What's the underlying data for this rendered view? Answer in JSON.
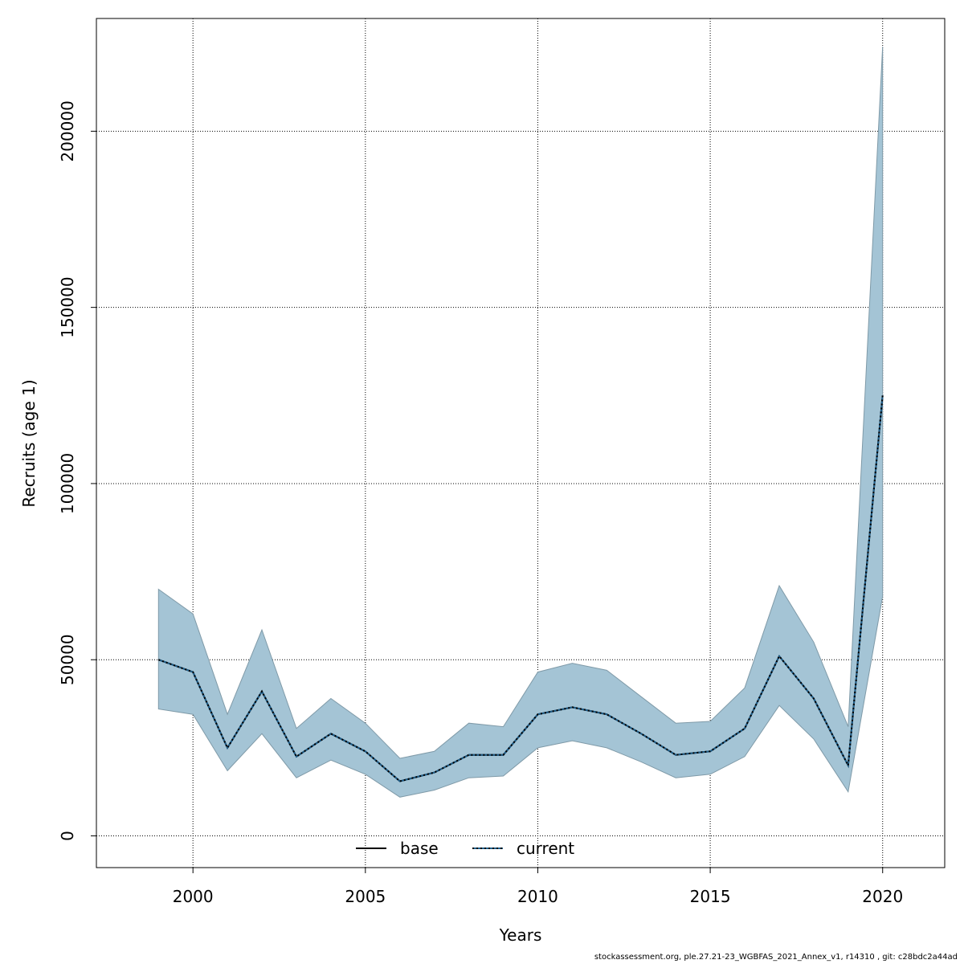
{
  "footer_text": "stockassessment.org, ple.27.21-23_WGBFAS_2021_Annex_v1, r14310 , git: c28bdc2a44ad",
  "colors": {
    "band_fill": "#a4c4d5",
    "band_stroke": "#7f9aa8",
    "grid": "#000000",
    "base_line": "#000000",
    "current_line_under": "#1f5f8b",
    "current_line_over": "#000000"
  },
  "chart_data": {
    "type": "line",
    "title": "",
    "xlabel": "Years",
    "ylabel": "Recruits (age 1)",
    "xlim": [
      1997.2,
      2021.8
    ],
    "ylim": [
      -9000,
      232000
    ],
    "x_ticks": [
      2000,
      2005,
      2010,
      2015,
      2020
    ],
    "x_tick_labels": [
      "2000",
      "2005",
      "2010",
      "2015",
      "2020"
    ],
    "y_ticks": [
      0,
      50000,
      100000,
      150000,
      200000
    ],
    "y_tick_labels": [
      "0",
      "50000",
      "100000",
      "150000",
      "200000"
    ],
    "grid": true,
    "legend": {
      "position": "bottom",
      "entries": [
        {
          "label": "base",
          "style": "solid"
        },
        {
          "label": "current",
          "style": "dotted"
        }
      ]
    },
    "x": [
      1999,
      2000,
      2001,
      2002,
      2003,
      2004,
      2005,
      2006,
      2007,
      2008,
      2009,
      2010,
      2011,
      2012,
      2013,
      2014,
      2015,
      2016,
      2017,
      2018,
      2019,
      2020
    ],
    "band": {
      "upper": [
        70000,
        63000,
        34500,
        58500,
        30500,
        39000,
        32000,
        22000,
        24000,
        32000,
        31000,
        46500,
        49000,
        47000,
        39500,
        32000,
        32500,
        42000,
        71000,
        55000,
        31000,
        224000
      ],
      "lower": [
        36000,
        34500,
        18500,
        29000,
        16500,
        21500,
        17500,
        11000,
        13000,
        16500,
        17000,
        25000,
        27000,
        25000,
        21000,
        16500,
        17500,
        22500,
        37000,
        27500,
        12500,
        68000
      ]
    },
    "series": [
      {
        "name": "base",
        "style": "solid",
        "values": [
          50000,
          46500,
          25000,
          41000,
          22500,
          29000,
          24000,
          15500,
          18000,
          23000,
          23000,
          34500,
          36500,
          34500,
          29000,
          23000,
          24000,
          30500,
          51000,
          39000,
          20000,
          125000
        ]
      },
      {
        "name": "current",
        "style": "dotted",
        "values": [
          50000,
          46500,
          25000,
          41000,
          22500,
          29000,
          24000,
          15500,
          18000,
          23000,
          23000,
          34500,
          36500,
          34500,
          29000,
          23000,
          24000,
          30500,
          51000,
          39000,
          20000,
          125000
        ]
      }
    ]
  }
}
